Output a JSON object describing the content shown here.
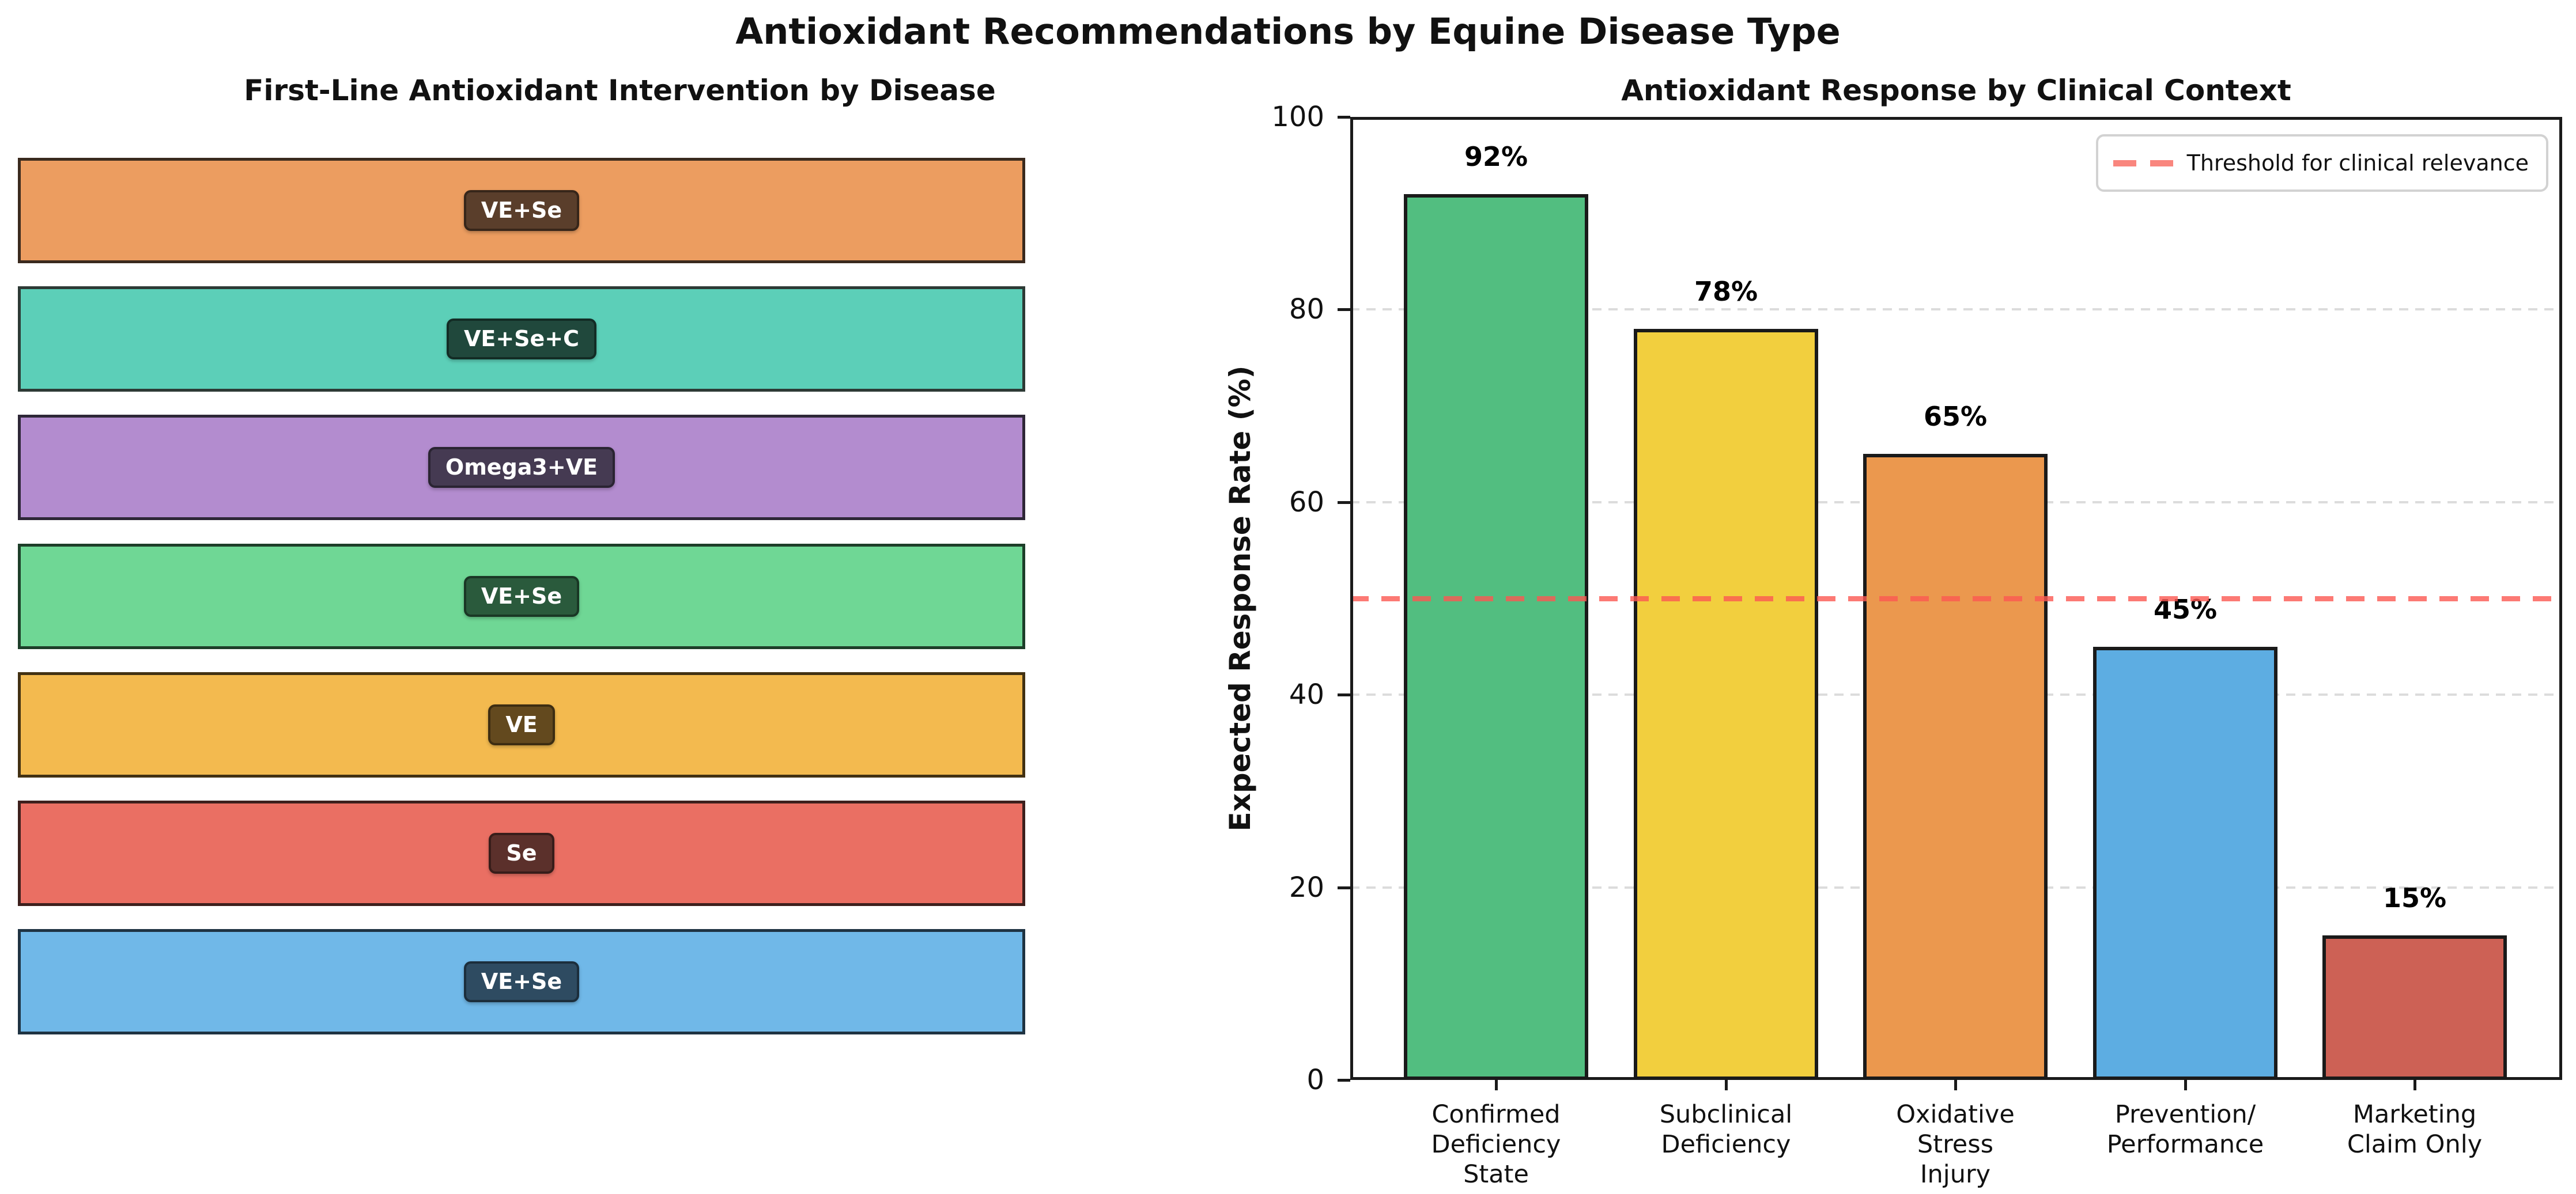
{
  "figure": {
    "title": "Antioxidant Recommendations by Equine Disease Type",
    "background": "#ffffff"
  },
  "left_chart": {
    "title": "First-Line Antioxidant Intervention by Disease",
    "bars": [
      {
        "label": "VE+Se",
        "fill": "#EC9D60",
        "box": "#5A3E2B",
        "edge": "#3A2A1E"
      },
      {
        "label": "VE+Se+C",
        "fill": "#5CCFB8",
        "box": "#20483C",
        "edge": "#2D3A35"
      },
      {
        "label": "Omega3+VE",
        "fill": "#B38CCF",
        "box": "#453A52",
        "edge": "#2E2737"
      },
      {
        "label": "VE+Se",
        "fill": "#6FD795",
        "box": "#2A5A3C",
        "edge": "#1D3E29"
      },
      {
        "label": "VE",
        "fill": "#F3BA4F",
        "box": "#63491E",
        "edge": "#423112"
      },
      {
        "label": "Se",
        "fill": "#EA6F63",
        "box": "#5B302B",
        "edge": "#3D201D"
      },
      {
        "label": "VE+Se",
        "fill": "#70B8E8",
        "box": "#2E4B61",
        "edge": "#1F3342"
      }
    ]
  },
  "right_chart": {
    "title": "Antioxidant Response by Clinical Context",
    "ylabel": "Expected Response Rate (%)",
    "ylim": [
      0,
      100
    ],
    "yticks": [
      0,
      20,
      40,
      60,
      80,
      100
    ],
    "grid_color": "#dcdcdc",
    "threshold": {
      "value": 50,
      "label": "Threshold for clinical relevance",
      "color": "#FF6B6B"
    },
    "bars": [
      {
        "category": "Confirmed\nDeficiency\nState",
        "value": 92,
        "value_label": "92%",
        "color": "#52BE80"
      },
      {
        "category": "Subclinical\nDeficiency",
        "value": 78,
        "value_label": "78%",
        "color": "#F2CF3E"
      },
      {
        "category": "Oxidative\nStress\nInjury",
        "value": 65,
        "value_label": "65%",
        "color": "#EB984E"
      },
      {
        "category": "Prevention/\nPerformance",
        "value": 45,
        "value_label": "45%",
        "color": "#5DADE2"
      },
      {
        "category": "Marketing\nClaim Only",
        "value": 15,
        "value_label": "15%",
        "color": "#CD6155"
      }
    ]
  },
  "chart_data": [
    {
      "type": "bar",
      "orientation": "horizontal",
      "title": "First-Line Antioxidant Intervention by Disease",
      "categories": [
        "VE+Se",
        "VE+Se+C",
        "Omega3+VE",
        "VE+Se",
        "VE",
        "Se",
        "VE+Se"
      ],
      "values": [
        1,
        1,
        1,
        1,
        1,
        1,
        1
      ],
      "bar_colors": [
        "#EC9D60",
        "#5CCFB8",
        "#B38CCF",
        "#6FD795",
        "#F3BA4F",
        "#EA6F63",
        "#70B8E8"
      ],
      "notes": "Seven equal-length bars, no visible axes or tick labels; each bar carries a centered dark rounded badge naming the first-line antioxidant intervention.",
      "grid": false,
      "legend_position": "none"
    },
    {
      "type": "bar",
      "title": "Antioxidant Response by Clinical Context",
      "categories": [
        "Confirmed Deficiency State",
        "Subclinical Deficiency",
        "Oxidative Stress Injury",
        "Prevention/ Performance",
        "Marketing Claim Only"
      ],
      "values": [
        92,
        78,
        65,
        45,
        15
      ],
      "data_labels": [
        "92%",
        "78%",
        "65%",
        "45%",
        "15%"
      ],
      "bar_colors": [
        "#52BE80",
        "#F2CF3E",
        "#EB984E",
        "#5DADE2",
        "#CD6155"
      ],
      "xlabel": "",
      "ylabel": "Expected Response Rate (%)",
      "ylim": [
        0,
        100
      ],
      "yticks": [
        0,
        20,
        40,
        60,
        80,
        100
      ],
      "grid": true,
      "grid_style": "dashed horizontal",
      "threshold_line": {
        "y": 50,
        "style": "dashed",
        "color": "#FF6B6B",
        "label": "Threshold for clinical relevance"
      },
      "legend_position": "upper right"
    }
  ]
}
